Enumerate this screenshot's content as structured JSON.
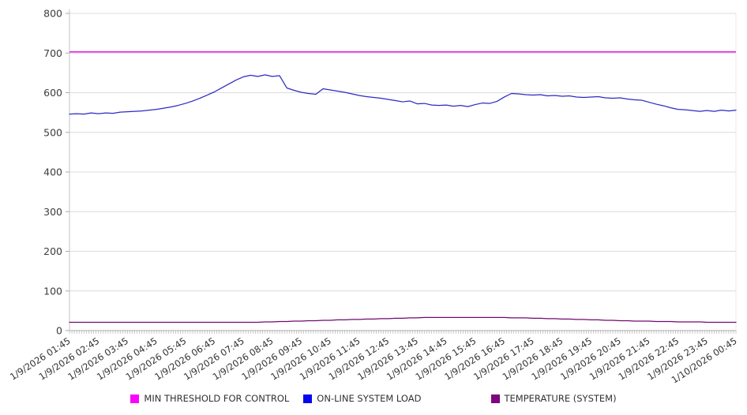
{
  "chart_data": {
    "type": "line",
    "title": "",
    "ylim": [
      0,
      800
    ],
    "y_ticks": [
      0,
      100,
      200,
      300,
      400,
      500,
      600,
      700,
      800
    ],
    "grid": "horizontal",
    "legend_position": "bottom",
    "x_tick_interval": "1 hour",
    "x_minor_tick_minutes": 5,
    "point_interval_minutes": 15,
    "x_categories": [
      "1/9/2026 01:45",
      "1/9/2026 02:45",
      "1/9/2026 03:45",
      "1/9/2026 04:45",
      "1/9/2026 05:45",
      "1/9/2026 06:45",
      "1/9/2026 07:45",
      "1/9/2026 08:45",
      "1/9/2026 09:45",
      "1/9/2026 10:45",
      "1/9/2026 11:45",
      "1/9/2026 12:45",
      "1/9/2026 13:45",
      "1/9/2026 14:45",
      "1/9/2026 15:45",
      "1/9/2026 16:45",
      "1/9/2026 17:45",
      "1/9/2026 18:45",
      "1/9/2026 19:45",
      "1/9/2026 20:45",
      "1/9/2026 21:45",
      "1/9/2026 22:45",
      "1/9/2026 23:45",
      "1/10/2026 00:45"
    ],
    "series": [
      {
        "name": "MIN THRESHOLD FOR CONTROL",
        "color": "#e318e3",
        "swatch": "#fb04fb",
        "constant": 703
      },
      {
        "name": "ON-LINE SYSTEM LOAD",
        "color": "#2b2bc4",
        "swatch": "#0707ef",
        "values": [
          546,
          547,
          546,
          549,
          547,
          549,
          548,
          551,
          552,
          553,
          554,
          556,
          558,
          561,
          564,
          568,
          573,
          579,
          586,
          594,
          602,
          612,
          622,
          632,
          640,
          644,
          641,
          645,
          641,
          643,
          612,
          606,
          601,
          598,
          596,
          610,
          607,
          604,
          601,
          597,
          593,
          590,
          588,
          586,
          583,
          580,
          577,
          579,
          572,
          573,
          569,
          568,
          569,
          566,
          568,
          565,
          570,
          574,
          573,
          578,
          589,
          598,
          597,
          595,
          594,
          595,
          592,
          593,
          591,
          592,
          589,
          588,
          589,
          590,
          587,
          586,
          587,
          584,
          582,
          581,
          576,
          571,
          567,
          562,
          558,
          557,
          555,
          553,
          555,
          553,
          556,
          554,
          556
        ]
      },
      {
        "name": "TEMPERATURE (SYSTEM)",
        "color": "#6f0a6f",
        "swatch": "#7d077d",
        "values": [
          21,
          21,
          21,
          21,
          21,
          21,
          21,
          21,
          21,
          21,
          21,
          21,
          21,
          21,
          21,
          21,
          21,
          21,
          21,
          21,
          21,
          21,
          21,
          21,
          21,
          21,
          21,
          22,
          22,
          23,
          23,
          24,
          24,
          25,
          25,
          26,
          26,
          27,
          27,
          28,
          28,
          29,
          29,
          30,
          30,
          31,
          31,
          32,
          32,
          33,
          33,
          33,
          33,
          33,
          33,
          33,
          33,
          33,
          33,
          33,
          33,
          32,
          32,
          32,
          31,
          31,
          30,
          30,
          29,
          29,
          28,
          28,
          27,
          27,
          26,
          26,
          25,
          25,
          24,
          24,
          24,
          23,
          23,
          23,
          22,
          22,
          22,
          22,
          21,
          21,
          21,
          21,
          21
        ]
      }
    ]
  }
}
